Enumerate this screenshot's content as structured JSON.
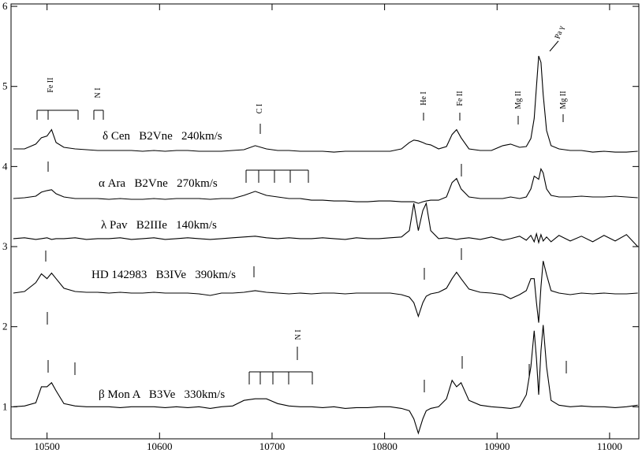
{
  "chart_data": {
    "type": "line",
    "x": [
      10470,
      10480,
      10490,
      10495,
      10500,
      10504,
      10508,
      10515,
      10525,
      10535,
      10545,
      10555,
      10565,
      10575,
      10585,
      10595,
      10605,
      10615,
      10625,
      10635,
      10645,
      10655,
      10665,
      10675,
      10685,
      10695,
      10705,
      10715,
      10725,
      10735,
      10745,
      10755,
      10765,
      10775,
      10785,
      10795,
      10805,
      10815,
      10822,
      10826,
      10830,
      10834,
      10837,
      10841,
      10848,
      10855,
      10860,
      10864,
      10868,
      10875,
      10885,
      10895,
      10905,
      10912,
      10920,
      10926,
      10930,
      10933,
      10935,
      10937,
      10939,
      10941,
      10944,
      10948,
      10955,
      10965,
      10975,
      10985,
      10995,
      11005,
      11015,
      11025
    ],
    "series": [
      {
        "name": "δ Cen   B2Vne   240km/s",
        "color": "#000000",
        "values": [
          4.22,
          4.22,
          4.28,
          4.36,
          4.38,
          4.46,
          4.3,
          4.24,
          4.22,
          4.21,
          4.2,
          4.2,
          4.2,
          4.2,
          4.19,
          4.2,
          4.19,
          4.2,
          4.2,
          4.19,
          4.19,
          4.19,
          4.2,
          4.21,
          4.26,
          4.22,
          4.2,
          4.2,
          4.19,
          4.19,
          4.19,
          4.18,
          4.19,
          4.19,
          4.19,
          4.19,
          4.19,
          4.22,
          4.3,
          4.33,
          4.32,
          4.3,
          4.28,
          4.27,
          4.22,
          4.25,
          4.4,
          4.46,
          4.36,
          4.22,
          4.2,
          4.2,
          4.26,
          4.28,
          4.24,
          4.25,
          4.35,
          4.6,
          5.0,
          5.38,
          5.3,
          4.9,
          4.45,
          4.26,
          4.22,
          4.2,
          4.2,
          4.18,
          4.19,
          4.18,
          4.18,
          4.19
        ]
      },
      {
        "name": "α Ara   B2Vne   270km/s",
        "color": "#000000",
        "values": [
          3.6,
          3.61,
          3.63,
          3.68,
          3.7,
          3.71,
          3.66,
          3.62,
          3.6,
          3.6,
          3.6,
          3.59,
          3.6,
          3.59,
          3.59,
          3.6,
          3.59,
          3.6,
          3.6,
          3.6,
          3.59,
          3.6,
          3.6,
          3.64,
          3.69,
          3.64,
          3.62,
          3.6,
          3.6,
          3.58,
          3.58,
          3.57,
          3.57,
          3.56,
          3.56,
          3.57,
          3.57,
          3.56,
          3.56,
          3.56,
          3.54,
          3.56,
          3.57,
          3.58,
          3.58,
          3.62,
          3.8,
          3.85,
          3.72,
          3.62,
          3.6,
          3.6,
          3.6,
          3.62,
          3.6,
          3.62,
          3.72,
          3.88,
          3.86,
          3.84,
          3.97,
          3.92,
          3.72,
          3.64,
          3.62,
          3.62,
          3.63,
          3.62,
          3.62,
          3.63,
          3.62,
          3.61
        ]
      },
      {
        "name": "λ Pav   B2IIIe   140km/s",
        "color": "#000000",
        "values": [
          3.1,
          3.11,
          3.09,
          3.1,
          3.11,
          3.09,
          3.1,
          3.1,
          3.11,
          3.09,
          3.1,
          3.1,
          3.11,
          3.09,
          3.1,
          3.11,
          3.09,
          3.1,
          3.11,
          3.1,
          3.09,
          3.1,
          3.11,
          3.12,
          3.13,
          3.11,
          3.1,
          3.11,
          3.1,
          3.1,
          3.11,
          3.1,
          3.09,
          3.11,
          3.1,
          3.1,
          3.11,
          3.12,
          3.2,
          3.54,
          3.2,
          3.45,
          3.54,
          3.2,
          3.1,
          3.11,
          3.1,
          3.09,
          3.1,
          3.11,
          3.09,
          3.12,
          3.08,
          3.1,
          3.13,
          3.08,
          3.14,
          3.06,
          3.16,
          3.05,
          3.15,
          3.07,
          3.12,
          3.06,
          3.14,
          3.07,
          3.13,
          3.06,
          3.14,
          3.07,
          3.15,
          3.0
        ]
      },
      {
        "name": "HD 142983   B3IVe   390km/s",
        "color": "#000000",
        "values": [
          2.42,
          2.44,
          2.55,
          2.66,
          2.6,
          2.67,
          2.6,
          2.48,
          2.44,
          2.43,
          2.43,
          2.42,
          2.43,
          2.42,
          2.42,
          2.43,
          2.42,
          2.42,
          2.42,
          2.41,
          2.39,
          2.42,
          2.42,
          2.43,
          2.45,
          2.43,
          2.42,
          2.41,
          2.42,
          2.41,
          2.42,
          2.42,
          2.41,
          2.42,
          2.42,
          2.42,
          2.42,
          2.4,
          2.37,
          2.3,
          2.13,
          2.3,
          2.38,
          2.41,
          2.43,
          2.48,
          2.6,
          2.68,
          2.6,
          2.47,
          2.43,
          2.42,
          2.4,
          2.35,
          2.4,
          2.45,
          2.6,
          2.6,
          2.3,
          2.05,
          2.5,
          2.82,
          2.65,
          2.45,
          2.42,
          2.4,
          2.42,
          2.41,
          2.42,
          2.41,
          2.41,
          2.42
        ]
      },
      {
        "name": "β Mon A   B3Ve   330km/s",
        "color": "#000000",
        "values": [
          1.0,
          1.01,
          1.05,
          1.25,
          1.25,
          1.3,
          1.2,
          1.04,
          1.01,
          1.0,
          1.0,
          1.0,
          0.99,
          1.0,
          1.0,
          1.0,
          0.99,
          1.0,
          0.99,
          1.0,
          0.98,
          1.0,
          1.01,
          1.08,
          1.1,
          1.1,
          1.04,
          1.01,
          1.0,
          1.0,
          0.99,
          1.0,
          0.98,
          0.99,
          0.99,
          1.0,
          1.0,
          0.98,
          0.95,
          0.85,
          0.67,
          0.85,
          0.95,
          0.98,
          1.0,
          1.1,
          1.33,
          1.25,
          1.3,
          1.08,
          1.02,
          1.0,
          0.99,
          0.98,
          1.0,
          1.15,
          1.5,
          1.95,
          1.6,
          1.15,
          1.7,
          2.02,
          1.5,
          1.08,
          1.02,
          1.0,
          1.01,
          1.0,
          1.0,
          0.99,
          1.0,
          1.02
        ]
      }
    ],
    "line_labels": [
      "Fe II",
      "N I",
      "C I",
      "He I",
      "Fe II",
      "Mg II",
      "Pa γ",
      "Mg II",
      "N I"
    ],
    "xlim": [
      10468,
      11026
    ],
    "ylim": [
      0.6,
      6.03
    ],
    "xticks": [
      10500,
      10600,
      10700,
      10800,
      10900,
      11000
    ],
    "yticks": [
      1,
      2,
      3,
      4,
      5,
      6
    ]
  }
}
